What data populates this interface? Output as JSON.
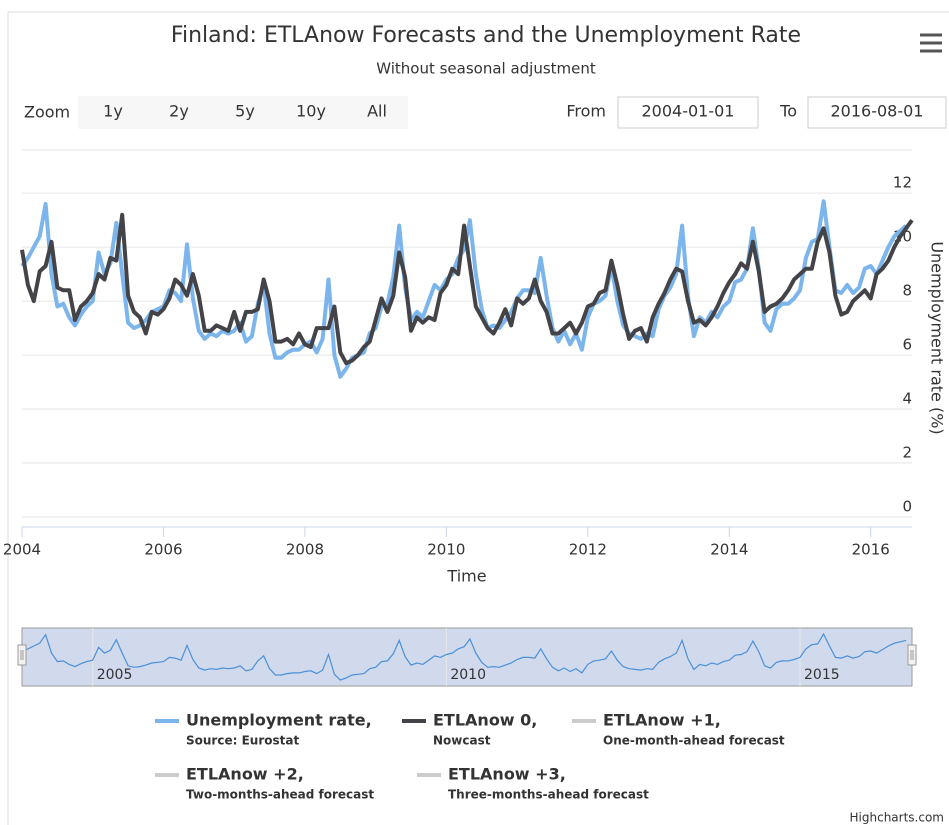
{
  "chart_data": {
    "type": "line",
    "title": "Finland: ETLAnow Forecasts and the Unemployment Rate",
    "subtitle": "Without seasonal adjustment",
    "x": [
      "2004-01",
      "2004-02",
      "2004-03",
      "2004-04",
      "2004-05",
      "2004-06",
      "2004-07",
      "2004-08",
      "2004-09",
      "2004-10",
      "2004-11",
      "2004-12",
      "2005-01",
      "2005-02",
      "2005-03",
      "2005-04",
      "2005-05",
      "2005-06",
      "2005-07",
      "2005-08",
      "2005-09",
      "2005-10",
      "2005-11",
      "2005-12",
      "2006-01",
      "2006-02",
      "2006-03",
      "2006-04",
      "2006-05",
      "2006-06",
      "2006-07",
      "2006-08",
      "2006-09",
      "2006-10",
      "2006-11",
      "2006-12",
      "2007-01",
      "2007-02",
      "2007-03",
      "2007-04",
      "2007-05",
      "2007-06",
      "2007-07",
      "2007-08",
      "2007-09",
      "2007-10",
      "2007-11",
      "2007-12",
      "2008-01",
      "2008-02",
      "2008-03",
      "2008-04",
      "2008-05",
      "2008-06",
      "2008-07",
      "2008-08",
      "2008-09",
      "2008-10",
      "2008-11",
      "2008-12",
      "2009-01",
      "2009-02",
      "2009-03",
      "2009-04",
      "2009-05",
      "2009-06",
      "2009-07",
      "2009-08",
      "2009-09",
      "2009-10",
      "2009-11",
      "2009-12",
      "2010-01",
      "2010-02",
      "2010-03",
      "2010-04",
      "2010-05",
      "2010-06",
      "2010-07",
      "2010-08",
      "2010-09",
      "2010-10",
      "2010-11",
      "2010-12",
      "2011-01",
      "2011-02",
      "2011-03",
      "2011-04",
      "2011-05",
      "2011-06",
      "2011-07",
      "2011-08",
      "2011-09",
      "2011-10",
      "2011-11",
      "2011-12",
      "2012-01",
      "2012-02",
      "2012-03",
      "2012-04",
      "2012-05",
      "2012-06",
      "2012-07",
      "2012-08",
      "2012-09",
      "2012-10",
      "2012-11",
      "2012-12",
      "2013-01",
      "2013-02",
      "2013-03",
      "2013-04",
      "2013-05",
      "2013-06",
      "2013-07",
      "2013-08",
      "2013-09",
      "2013-10",
      "2013-11",
      "2013-12",
      "2014-01",
      "2014-02",
      "2014-03",
      "2014-04",
      "2014-05",
      "2014-06",
      "2014-07",
      "2014-08",
      "2014-09",
      "2014-10",
      "2014-11",
      "2014-12",
      "2015-01",
      "2015-02",
      "2015-03",
      "2015-04",
      "2015-05",
      "2015-06",
      "2015-07",
      "2015-08",
      "2015-09",
      "2015-10",
      "2015-11",
      "2015-12",
      "2016-01",
      "2016-02",
      "2016-03",
      "2016-04",
      "2016-05",
      "2016-06",
      "2016-07",
      "2016-08"
    ],
    "xlim": [
      "2004-01-01",
      "2016-08-01"
    ],
    "xticks": [
      2004,
      2006,
      2008,
      2010,
      2012,
      2014,
      2016
    ],
    "x_label": "Time",
    "ylim": [
      0,
      13.6
    ],
    "yticks": [
      0,
      2,
      4,
      6,
      8,
      10,
      12
    ],
    "y_label": "Unemployment rate (%)",
    "y_axis_side": "right",
    "grid": true,
    "legend": "bottom",
    "series": [
      {
        "name": "Unemployment rate,",
        "description": "Source: Eurostat",
        "color": "#7cb5ec",
        "visible": true,
        "values": [
          9.3,
          9.6,
          10.0,
          10.4,
          11.6,
          9.0,
          7.8,
          7.9,
          7.4,
          7.1,
          7.5,
          7.8,
          8.0,
          9.8,
          9.0,
          9.4,
          10.9,
          9.0,
          7.2,
          7.0,
          7.1,
          7.3,
          7.6,
          7.7,
          7.8,
          8.4,
          8.3,
          8.0,
          10.1,
          8.1,
          6.9,
          6.6,
          6.8,
          6.7,
          6.9,
          6.8,
          6.9,
          7.2,
          6.5,
          6.7,
          7.9,
          8.6,
          6.8,
          5.9,
          5.9,
          6.1,
          6.2,
          6.2,
          6.4,
          6.5,
          6.1,
          6.6,
          8.8,
          6.0,
          5.2,
          5.5,
          5.9,
          6.0,
          6.1,
          6.8,
          7.0,
          7.8,
          7.9,
          8.9,
          10.8,
          8.5,
          7.3,
          7.6,
          7.4,
          8.0,
          8.6,
          8.4,
          8.8,
          9.0,
          9.6,
          9.9,
          11.0,
          9.0,
          7.7,
          7.0,
          7.1,
          7.0,
          7.3,
          7.6,
          8.1,
          8.4,
          8.4,
          8.3,
          9.6,
          8.2,
          7.0,
          6.5,
          6.9,
          6.4,
          6.8,
          6.2,
          7.4,
          7.9,
          8.0,
          8.2,
          9.3,
          8.0,
          7.1,
          6.8,
          6.7,
          6.6,
          6.8,
          6.7,
          7.7,
          8.2,
          8.5,
          9.0,
          10.8,
          8.2,
          6.7,
          7.4,
          7.2,
          7.6,
          7.4,
          7.8,
          8.0,
          8.7,
          8.8,
          9.2,
          10.7,
          9.2,
          7.2,
          6.9,
          7.7,
          7.9,
          7.9,
          8.1,
          8.4,
          9.6,
          10.2,
          10.3,
          11.7,
          10.0,
          8.4,
          8.3,
          8.6,
          8.3,
          8.5,
          9.2,
          9.3,
          9.0,
          9.5,
          10.0,
          10.4,
          10.6,
          10.8,
          null
        ]
      },
      {
        "name": "ETLAnow 0,",
        "description": "Nowcast",
        "color": "#434348",
        "visible": true,
        "values": [
          9.9,
          8.6,
          8.0,
          9.1,
          9.3,
          10.2,
          8.5,
          8.4,
          8.4,
          7.3,
          7.8,
          8.0,
          8.3,
          9.0,
          8.8,
          9.6,
          9.5,
          11.2,
          8.2,
          7.6,
          7.4,
          6.8,
          7.6,
          7.5,
          7.7,
          8.1,
          8.8,
          8.6,
          8.2,
          9.0,
          8.2,
          6.9,
          6.9,
          7.1,
          7.0,
          6.9,
          7.6,
          6.9,
          7.6,
          7.6,
          7.7,
          8.8,
          8.0,
          6.5,
          6.5,
          6.6,
          6.4,
          6.8,
          6.4,
          6.3,
          7.0,
          7.0,
          7.0,
          7.8,
          6.1,
          5.7,
          5.8,
          6.0,
          6.3,
          6.5,
          7.3,
          8.1,
          7.6,
          8.2,
          9.8,
          8.9,
          6.9,
          7.4,
          7.2,
          7.4,
          7.3,
          8.3,
          8.6,
          9.2,
          9.0,
          10.8,
          9.3,
          7.8,
          7.4,
          7.0,
          6.8,
          7.2,
          7.7,
          7.1,
          8.1,
          7.9,
          8.1,
          8.8,
          8.0,
          7.6,
          6.8,
          6.8,
          7.0,
          7.2,
          6.8,
          7.2,
          7.8,
          7.9,
          8.3,
          8.4,
          9.5,
          8.6,
          7.5,
          6.6,
          6.9,
          7.0,
          6.5,
          7.4,
          7.9,
          8.3,
          8.8,
          9.2,
          9.1,
          8.0,
          7.2,
          7.3,
          7.1,
          7.4,
          7.8,
          8.3,
          8.7,
          9.0,
          9.4,
          9.2,
          10.2,
          9.1,
          7.6,
          7.8,
          7.9,
          8.1,
          8.4,
          8.8,
          9.0,
          9.2,
          9.2,
          10.2,
          10.7,
          9.8,
          8.2,
          7.5,
          7.6,
          8.0,
          8.2,
          8.4,
          8.1,
          9.0,
          9.2,
          9.5,
          10.0,
          10.4,
          10.7,
          11.0
        ]
      },
      {
        "name": "ETLAnow +1,",
        "description": "One-month-ahead forecast",
        "visible": false
      },
      {
        "name": "ETLAnow +2,",
        "description": "Two-months-ahead forecast",
        "visible": false
      },
      {
        "name": "ETLAnow +3,",
        "description": "Three-months-ahead forecast",
        "visible": false
      }
    ],
    "navigator": {
      "xticks": [
        2005,
        2010,
        2015
      ]
    }
  },
  "range_selector": {
    "zoom_label": "Zoom",
    "buttons": [
      "1y",
      "2y",
      "5y",
      "10y",
      "All"
    ],
    "disabled_button": 4,
    "from_label": "From",
    "to_label": "To"
  },
  "credits": "Highcharts.com"
}
